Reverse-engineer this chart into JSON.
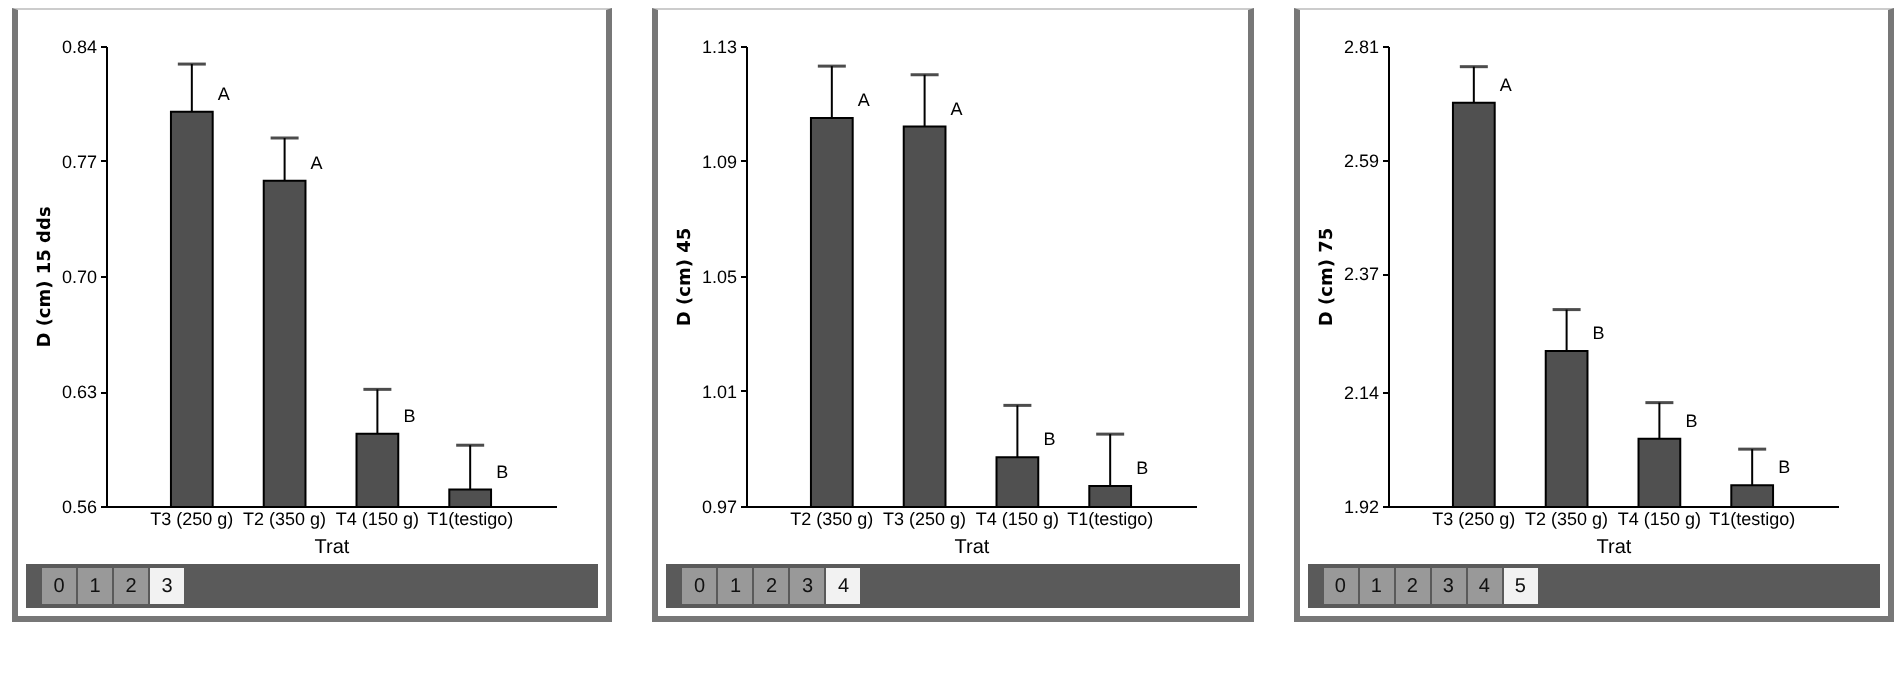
{
  "chart_data": [
    {
      "type": "bar",
      "ylabel": "D (cm) 15 dds",
      "xlabel": "Trat",
      "categories": [
        "T3 (250 g)",
        "T2 (350 g)",
        "T4 (150 g)",
        "T1(testigo)"
      ],
      "values": [
        0.8,
        0.758,
        0.604,
        0.57
      ],
      "errors": [
        [
          0.8,
          0.829
        ],
        [
          0.758,
          0.784
        ],
        [
          0.604,
          0.631
        ],
        [
          0.57,
          0.597
        ]
      ],
      "color": "#505050",
      "ylim": [
        0.56,
        0.84
      ],
      "yticks": [
        0.56,
        0.63,
        {
          "value": 0.7,
          "label": "0.70"
        },
        0.77,
        0.84
      ],
      "grid": false,
      "annotations": [
        {
          "text": "A",
          "x": "T3 (250 g)",
          "y": 0.8
        },
        {
          "text": "A",
          "x": "T2 (350 g)",
          "y": 0.758
        },
        {
          "text": "B",
          "x": "T4 (150 g)",
          "y": 0.604
        },
        {
          "text": "B",
          "x": "T1(testigo)",
          "y": 0.57
        },
        "0",
        "1",
        "2",
        "3"
      ]
    },
    {
      "type": "bar",
      "ylabel": "D (cm) 45",
      "xlabel": "Trat",
      "categories": [
        "T2 (350 g)",
        "T3 (250 g)",
        "T4 (150 g)",
        "T1(testigo)"
      ],
      "values": [
        1.105,
        1.102,
        0.987,
        0.977
      ],
      "errors": [
        [
          1.105,
          1.123
        ],
        [
          1.102,
          1.12
        ],
        [
          0.987,
          1.005
        ],
        [
          0.977,
          0.995
        ]
      ],
      "color": "#505050",
      "ylim": [
        0.97,
        1.13
      ],
      "yticks": [
        0.97,
        1.01,
        1.05,
        1.09,
        1.13
      ],
      "grid": false,
      "annotations": [
        {
          "text": "A",
          "x": "T2 (350 g)",
          "y": 1.105
        },
        {
          "text": "A",
          "x": "T3 (250 g)",
          "y": 1.102
        },
        {
          "text": "B",
          "x": "T4 (150 g)",
          "y": 0.987
        },
        {
          "text": "B",
          "x": "T1(testigo)",
          "y": 0.977
        },
        "0",
        "1",
        "2",
        "3",
        "4"
      ]
    },
    {
      "type": "bar",
      "ylabel": "D (cm) 75",
      "xlabel": "Trat",
      "categories": [
        "T3 (250 g)",
        "T2 (350 g)",
        "T4 (150 g)",
        "T1(testigo)"
      ],
      "values": [
        2.7,
        2.22,
        2.05,
        1.96
      ],
      "errors": [
        [
          2.7,
          2.77
        ],
        [
          2.22,
          2.3
        ],
        [
          2.05,
          2.12
        ],
        [
          1.96,
          2.03
        ]
      ],
      "color": "#505050",
      "ylim": [
        1.92,
        2.81
      ],
      "yticks": [
        1.92,
        2.14,
        2.37,
        2.59,
        2.81
      ],
      "grid": false,
      "annotations": [
        {
          "text": "A",
          "x": "T3 (250 g)",
          "y": 2.7
        },
        {
          "text": "B",
          "x": "T2 (350 g)",
          "y": 2.22
        },
        {
          "text": "B",
          "x": "T4 (150 g)",
          "y": 2.05
        },
        {
          "text": "B",
          "x": "T1(testigo)",
          "y": 1.96
        },
        "0",
        "1",
        "2",
        "3",
        "4",
        "5"
      ]
    }
  ]
}
